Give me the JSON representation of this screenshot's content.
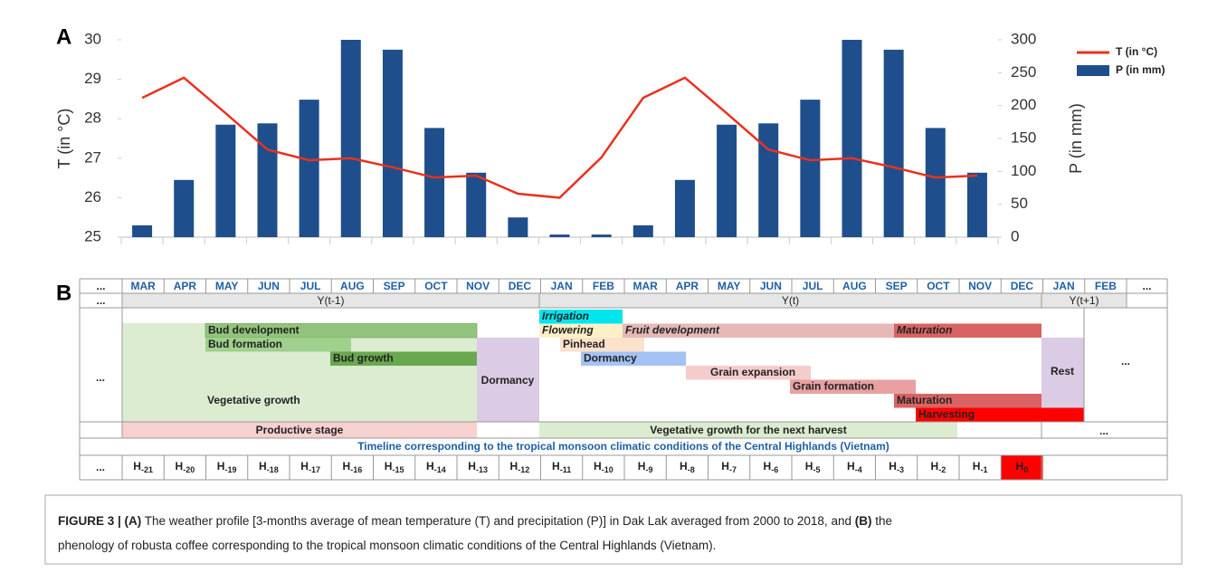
{
  "chart_data": {
    "type": "bar",
    "panel_label": "A",
    "categories": [
      null,
      null,
      null,
      null,
      null,
      null,
      null,
      null,
      null,
      null,
      null,
      null,
      null,
      null,
      null,
      null,
      null,
      null,
      null,
      null,
      null
    ],
    "series": [
      {
        "name": "T (in °C)",
        "type": "line",
        "color": "#e8321e",
        "values": [
          28.53,
          29.04,
          28.14,
          27.22,
          26.95,
          27.0,
          26.77,
          26.51,
          26.56,
          26.1,
          26.0,
          27.02,
          28.53,
          29.04,
          28.14,
          27.22,
          26.95,
          27.0,
          26.77,
          26.51,
          26.56
        ]
      },
      {
        "name": "P (in mm)",
        "type": "bar",
        "axis": "y2",
        "color": "#1f4e8c",
        "values": [
          18,
          87,
          171,
          173,
          209,
          300,
          285,
          166,
          98,
          30,
          4,
          4,
          18,
          87,
          171,
          173,
          209,
          300,
          285,
          166,
          98
        ]
      }
    ],
    "ylabel": "T  (in °C)",
    "y2label": "P (in mm)",
    "ylim": [
      25,
      30
    ],
    "yticks": [
      25,
      26,
      27,
      28,
      29,
      30
    ],
    "y2lim": [
      0,
      300
    ],
    "y2ticks": [
      0,
      50,
      100,
      150,
      200,
      250,
      300
    ],
    "grid": false,
    "legend": "right"
  },
  "phenology": {
    "panel_label": "B",
    "months": [
      "...",
      "MAR",
      "APR",
      "MAY",
      "JUN",
      "JUL",
      "AUG",
      "SEP",
      "OCT",
      "NOV",
      "DEC",
      "JAN",
      "FEB",
      "MAR",
      "APR",
      "MAY",
      "JUN",
      "JUL",
      "AUG",
      "SEP",
      "OCT",
      "NOV",
      "DEC",
      "JAN",
      "FEB",
      "..."
    ],
    "years": [
      "...",
      "Y(t-1)",
      "Y(t)",
      "Y(t+1)"
    ],
    "blocks": [
      "Vegetative growth",
      "Dormancy",
      "Rest"
    ],
    "phases": [
      "Irrigation",
      "Bud development",
      "Flowering",
      "Fruit development",
      "Maturation",
      "Bud formation",
      "Pinhead",
      "Bud growth",
      "Dormancy",
      "Grain expansion",
      "Grain formation",
      "Maturation",
      "Harvesting"
    ],
    "left_ellipsis": "...",
    "right_ellipsis": "...",
    "stage_row": [
      "Productive stage",
      "Vegetative growth for the next harvest",
      "..."
    ],
    "timeline": "Timeline corresponding to the tropical monsoon climatic conditions of the Central Highlands (Vietnam)",
    "h_first": "...",
    "h_cells": [
      {
        "main": "H",
        "sub": "-21"
      },
      {
        "main": "H",
        "sub": "-20"
      },
      {
        "main": "H",
        "sub": "-19"
      },
      {
        "main": "H",
        "sub": "-18"
      },
      {
        "main": "H",
        "sub": "-17"
      },
      {
        "main": "H",
        "sub": "-16"
      },
      {
        "main": "H",
        "sub": "-15"
      },
      {
        "main": "H",
        "sub": "-14"
      },
      {
        "main": "H",
        "sub": "-13"
      },
      {
        "main": "H",
        "sub": "-12"
      },
      {
        "main": "H",
        "sub": "-11"
      },
      {
        "main": "H",
        "sub": "-10"
      },
      {
        "main": "H",
        "sub": "-9"
      },
      {
        "main": "H",
        "sub": "-8"
      },
      {
        "main": "H",
        "sub": "-7"
      },
      {
        "main": "H",
        "sub": "-6"
      },
      {
        "main": "H",
        "sub": "-5"
      },
      {
        "main": "H",
        "sub": "-4"
      },
      {
        "main": "H",
        "sub": "-3"
      },
      {
        "main": "H",
        "sub": "-2"
      },
      {
        "main": "H",
        "sub": "-1"
      },
      {
        "main": "H",
        "sub": "0"
      }
    ]
  },
  "caption": [
    [
      {
        "text": "FIGURE 3 | (A)",
        "bold": true
      },
      {
        "text": " The weather profile [3-months average of mean temperature (T) and precipitation (P)] in Dak Lak averaged from 2000 to 2018, and ",
        "bold": false
      },
      {
        "text": "(B)",
        "bold": true
      },
      {
        "text": " the",
        "bold": false
      }
    ],
    [
      {
        "text": "phenology of robusta coffee corresponding to the tropical monsoon climatic conditions of the Central Highlands (Vietnam).",
        "bold": false
      }
    ]
  ]
}
